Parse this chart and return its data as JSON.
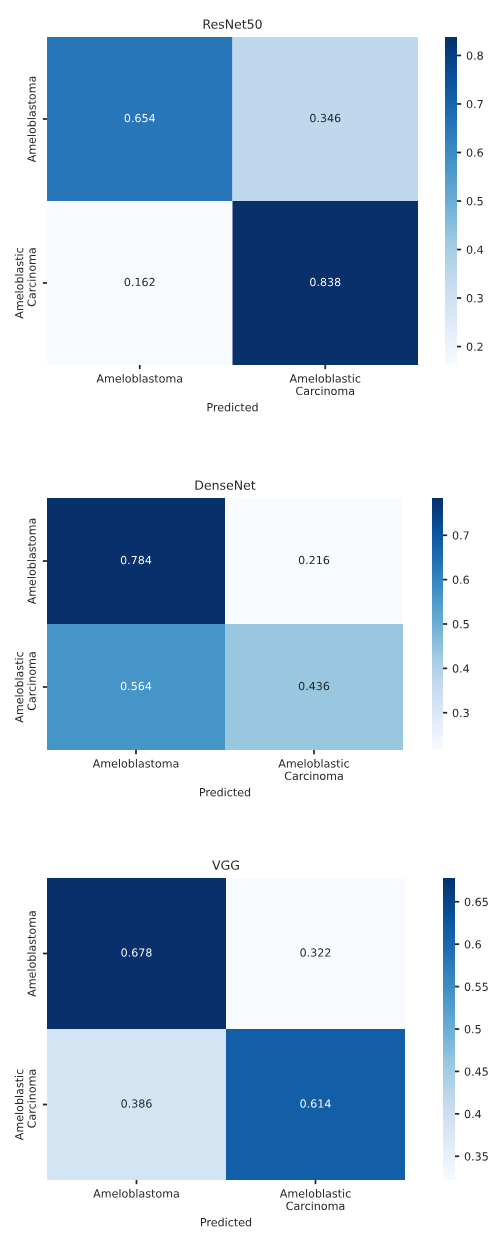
{
  "chart_data": [
    {
      "type": "heatmap",
      "title": "ResNet50",
      "xlabel": "Predicted",
      "categories": [
        "Ameloblastoma",
        "Ameloblastic\nCarcinoma"
      ],
      "y_categories": [
        "Ameloblastoma",
        "Ameloblastic\nCarcinoma"
      ],
      "cells": [
        [
          0.654,
          0.346
        ],
        [
          0.162,
          0.838
        ]
      ],
      "data_labels": true,
      "clim": [
        0.162,
        0.838
      ],
      "cticks": [
        0.2,
        0.3,
        0.4,
        0.5,
        0.6,
        0.7,
        0.8
      ]
    },
    {
      "type": "heatmap",
      "title": "DenseNet",
      "xlabel": "Predicted",
      "categories": [
        "Ameloblastoma",
        "Ameloblastic\nCarcinoma"
      ],
      "y_categories": [
        "Ameloblastoma",
        "Ameloblastic\nCarcinoma"
      ],
      "cells": [
        [
          0.784,
          0.216
        ],
        [
          0.564,
          0.436
        ]
      ],
      "data_labels": true,
      "clim": [
        0.216,
        0.784
      ],
      "cticks": [
        0.3,
        0.4,
        0.5,
        0.6,
        0.7
      ]
    },
    {
      "type": "heatmap",
      "title": "VGG",
      "xlabel": "Predicted",
      "categories": [
        "Ameloblastoma",
        "Ameloblastic\nCarcinoma"
      ],
      "y_categories": [
        "Ameloblastoma",
        "Ameloblastic\nCarcinoma"
      ],
      "cells": [
        [
          0.678,
          0.322
        ],
        [
          0.386,
          0.614
        ]
      ],
      "data_labels": true,
      "clim": [
        0.322,
        0.678
      ],
      "cticks": [
        0.35,
        0.4,
        0.45,
        0.5,
        0.55,
        0.6,
        0.65
      ]
    }
  ]
}
